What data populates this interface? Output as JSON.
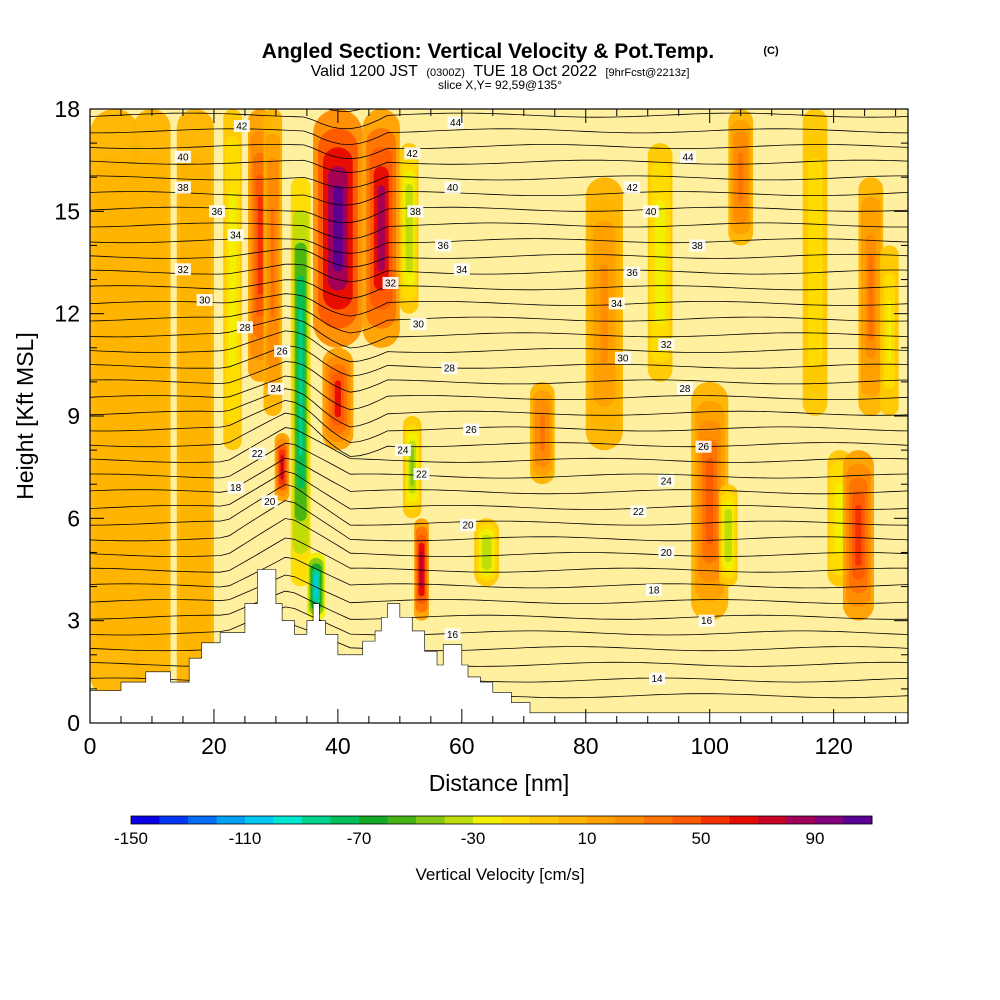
{
  "title": {
    "main": "Angled Section: Vertical Velocity & Pot.Temp.",
    "copyright": "(C)",
    "valid_prefix": "Valid 1200 JST",
    "utc": "(0300Z)",
    "date": "TUE 18 Oct 2022",
    "forecast": "[9hrFcst@2213z]",
    "slice": "slice X,Y= 92,59@135°"
  },
  "chart_data": {
    "type": "heatmap",
    "xlabel": "Distance [nm]",
    "ylabel": "Height [Kft MSL]",
    "xlim": [
      0,
      132
    ],
    "ylim": [
      0,
      18
    ],
    "x_ticks": [
      0,
      20,
      40,
      60,
      80,
      100,
      120
    ],
    "y_ticks": [
      0,
      3,
      6,
      9,
      12,
      15,
      18
    ],
    "x_tick_labels": [
      "0",
      "20",
      "40",
      "60",
      "80",
      "100",
      "120"
    ],
    "y_tick_labels": [
      "0",
      "3",
      "6",
      "9",
      "12",
      "15",
      "18"
    ],
    "colorbar": {
      "title": "Vertical Velocity [cm/s]",
      "min": -150,
      "max": 110,
      "step": 10,
      "tick_labels": [
        "-150",
        "-110",
        "-70",
        "-30",
        "10",
        "50",
        "90"
      ],
      "tick_values": [
        -150,
        -110,
        -70,
        -30,
        10,
        50,
        90
      ],
      "colors": [
        "#0a00e6",
        "#0036f5",
        "#006cf7",
        "#00a0f5",
        "#00c8f0",
        "#00e6d2",
        "#00d28c",
        "#00be5a",
        "#14aa28",
        "#46b414",
        "#82c814",
        "#bedc0a",
        "#f0f000",
        "#ffdc00",
        "#ffc800",
        "#ffb400",
        "#ffa000",
        "#ff8c00",
        "#ff7300",
        "#ff5a00",
        "#f53200",
        "#e60a00",
        "#c80028",
        "#a0005a",
        "#82007d",
        "#5a0096"
      ]
    },
    "theta_contour_labels": [
      "14",
      "16",
      "18",
      "20",
      "22",
      "24",
      "26",
      "28",
      "30",
      "32",
      "34",
      "36",
      "38",
      "40",
      "42",
      "44"
    ],
    "terrain_kft": [
      [
        0,
        0.95
      ],
      [
        5,
        0.95
      ],
      [
        5,
        1.2
      ],
      [
        9,
        1.2
      ],
      [
        9,
        1.5
      ],
      [
        13,
        1.5
      ],
      [
        13,
        1.2
      ],
      [
        16,
        1.2
      ],
      [
        16,
        1.9
      ],
      [
        18,
        1.9
      ],
      [
        18,
        2.35
      ],
      [
        21,
        2.35
      ],
      [
        21,
        2.65
      ],
      [
        25,
        2.65
      ],
      [
        25,
        3.5
      ],
      [
        27,
        3.5
      ],
      [
        27,
        4.5
      ],
      [
        30,
        4.5
      ],
      [
        30,
        3.5
      ],
      [
        31,
        3.5
      ],
      [
        31,
        3.0
      ],
      [
        33,
        3.0
      ],
      [
        33,
        2.6
      ],
      [
        35,
        2.6
      ],
      [
        35,
        3.0
      ],
      [
        36,
        3.0
      ],
      [
        36,
        3.5
      ],
      [
        37,
        3.5
      ],
      [
        37,
        3.0
      ],
      [
        38,
        3.0
      ],
      [
        38,
        2.6
      ],
      [
        40,
        2.6
      ],
      [
        40,
        2.0
      ],
      [
        44,
        2.0
      ],
      [
        44,
        2.4
      ],
      [
        46,
        2.4
      ],
      [
        46,
        2.7
      ],
      [
        47,
        2.7
      ],
      [
        47,
        3.1
      ],
      [
        48,
        3.1
      ],
      [
        48,
        3.5
      ],
      [
        50,
        3.5
      ],
      [
        50,
        3.1
      ],
      [
        52,
        3.1
      ],
      [
        52,
        2.7
      ],
      [
        54,
        2.7
      ],
      [
        54,
        2.1
      ],
      [
        56,
        2.1
      ],
      [
        56,
        1.7
      ],
      [
        57,
        1.7
      ],
      [
        57,
        2.3
      ],
      [
        60,
        2.3
      ],
      [
        60,
        1.7
      ],
      [
        61,
        1.7
      ],
      [
        61,
        1.35
      ],
      [
        63,
        1.35
      ],
      [
        63,
        1.2
      ],
      [
        65,
        1.2
      ],
      [
        65,
        0.9
      ],
      [
        68,
        0.9
      ],
      [
        68,
        0.6
      ],
      [
        71,
        0.6
      ],
      [
        71,
        0.3
      ],
      [
        132,
        0.3
      ]
    ],
    "vertical_velocity_features": [
      {
        "x": 4,
        "z0": 0.7,
        "z1": 18,
        "w": 4,
        "cms": 5
      },
      {
        "x": 10,
        "z0": 0.7,
        "z1": 18,
        "w": 3,
        "cms": 0
      },
      {
        "x": 17,
        "z0": 0.7,
        "z1": 18,
        "w": 3,
        "cms": 4
      },
      {
        "x": 23,
        "z0": 8,
        "z1": 18,
        "w": 1.5,
        "cms": -30
      },
      {
        "x": 27.5,
        "z0": 10,
        "z1": 18,
        "w": 2,
        "cms": 55
      },
      {
        "x": 29.5,
        "z0": 9,
        "z1": 18,
        "w": 1.5,
        "cms": 35
      },
      {
        "x": 31,
        "z0": 6.5,
        "z1": 8.5,
        "w": 1.2,
        "cms": 70
      },
      {
        "x": 34,
        "z0": 4,
        "z1": 16,
        "w": 1.6,
        "cms": -90
      },
      {
        "x": 36.5,
        "z0": 3,
        "z1": 5,
        "w": 1.5,
        "cms": -110
      },
      {
        "x": 40,
        "z0": 11,
        "z1": 18,
        "w": 4,
        "cms": 110
      },
      {
        "x": 40,
        "z0": 8,
        "z1": 11,
        "w": 2.5,
        "cms": 60
      },
      {
        "x": 47,
        "z0": 11,
        "z1": 18,
        "w": 3,
        "cms": 80
      },
      {
        "x": 51.5,
        "z0": 12,
        "z1": 17,
        "w": 1.5,
        "cms": -40
      },
      {
        "x": 52,
        "z0": 6,
        "z1": 9,
        "w": 1.5,
        "cms": -45
      },
      {
        "x": 53.5,
        "z0": 3,
        "z1": 6,
        "w": 1.2,
        "cms": 75
      },
      {
        "x": 64,
        "z0": 4,
        "z1": 6,
        "w": 2,
        "cms": -40
      },
      {
        "x": 73,
        "z0": 7,
        "z1": 10,
        "w": 2,
        "cms": 35
      },
      {
        "x": 83,
        "z0": 8,
        "z1": 16,
        "w": 3,
        "cms": 20
      },
      {
        "x": 92,
        "z0": 10,
        "z1": 17,
        "w": 2,
        "cms": -30
      },
      {
        "x": 100,
        "z0": 3,
        "z1": 10,
        "w": 3,
        "cms": 45
      },
      {
        "x": 103,
        "z0": 4,
        "z1": 7,
        "w": 1.5,
        "cms": -40
      },
      {
        "x": 105,
        "z0": 14,
        "z1": 18,
        "w": 2,
        "cms": 35
      },
      {
        "x": 117,
        "z0": 9,
        "z1": 18,
        "w": 2,
        "cms": -20
      },
      {
        "x": 121,
        "z0": 4,
        "z1": 8,
        "w": 2,
        "cms": -30
      },
      {
        "x": 124,
        "z0": 3,
        "z1": 8,
        "w": 2.5,
        "cms": 50
      },
      {
        "x": 126,
        "z0": 9,
        "z1": 16,
        "w": 2,
        "cms": 30
      },
      {
        "x": 129,
        "z0": 9,
        "z1": 14,
        "w": 1.5,
        "cms": -25
      }
    ],
    "theta_contour_label_positions": [
      {
        "t": "42",
        "x": 24.5,
        "z": 17.5
      },
      {
        "t": "40",
        "x": 15,
        "z": 16.6
      },
      {
        "t": "38",
        "x": 15,
        "z": 15.7
      },
      {
        "t": "36",
        "x": 20.5,
        "z": 15.0
      },
      {
        "t": "34",
        "x": 23.5,
        "z": 14.3
      },
      {
        "t": "32",
        "x": 15,
        "z": 13.3
      },
      {
        "t": "30",
        "x": 18.5,
        "z": 12.4
      },
      {
        "t": "28",
        "x": 25,
        "z": 11.6
      },
      {
        "t": "26",
        "x": 31,
        "z": 10.9
      },
      {
        "t": "24",
        "x": 30,
        "z": 9.8
      },
      {
        "t": "22",
        "x": 27,
        "z": 7.9
      },
      {
        "t": "18",
        "x": 23.5,
        "z": 6.9
      },
      {
        "t": "20",
        "x": 29,
        "z": 6.5
      },
      {
        "t": "44",
        "x": 59,
        "z": 17.6
      },
      {
        "t": "42",
        "x": 52,
        "z": 16.7
      },
      {
        "t": "40",
        "x": 58.5,
        "z": 15.7
      },
      {
        "t": "38",
        "x": 52.5,
        "z": 15.0
      },
      {
        "t": "36",
        "x": 57,
        "z": 14.0
      },
      {
        "t": "34",
        "x": 60,
        "z": 13.3
      },
      {
        "t": "32",
        "x": 48.5,
        "z": 12.9
      },
      {
        "t": "30",
        "x": 53,
        "z": 11.7
      },
      {
        "t": "28",
        "x": 58,
        "z": 10.4
      },
      {
        "t": "26",
        "x": 61.5,
        "z": 8.6
      },
      {
        "t": "24",
        "x": 50.5,
        "z": 8.0
      },
      {
        "t": "22",
        "x": 53.5,
        "z": 7.3
      },
      {
        "t": "20",
        "x": 61,
        "z": 5.8
      },
      {
        "t": "16",
        "x": 58.5,
        "z": 2.6
      },
      {
        "t": "44",
        "x": 96.5,
        "z": 16.6
      },
      {
        "t": "42",
        "x": 87.5,
        "z": 15.7
      },
      {
        "t": "40",
        "x": 90.5,
        "z": 15.0
      },
      {
        "t": "38",
        "x": 98,
        "z": 14.0
      },
      {
        "t": "36",
        "x": 87.5,
        "z": 13.2
      },
      {
        "t": "34",
        "x": 85,
        "z": 12.3
      },
      {
        "t": "32",
        "x": 93,
        "z": 11.1
      },
      {
        "t": "30",
        "x": 86,
        "z": 10.7
      },
      {
        "t": "28",
        "x": 96,
        "z": 9.8
      },
      {
        "t": "26",
        "x": 99,
        "z": 8.1
      },
      {
        "t": "24",
        "x": 93,
        "z": 7.1
      },
      {
        "t": "22",
        "x": 88.5,
        "z": 6.2
      },
      {
        "t": "20",
        "x": 93,
        "z": 5.0
      },
      {
        "t": "18",
        "x": 91,
        "z": 3.9
      },
      {
        "t": "16",
        "x": 99.5,
        "z": 3.0
      },
      {
        "t": "14",
        "x": 91.5,
        "z": 1.3
      }
    ]
  }
}
